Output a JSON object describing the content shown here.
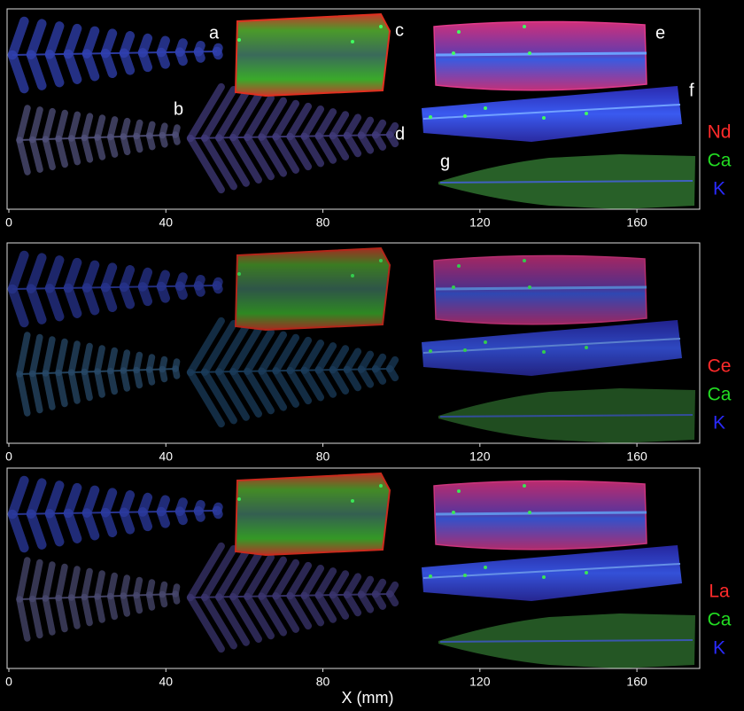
{
  "panels": [
    {
      "sample_labels": [
        "a",
        "b",
        "c",
        "d",
        "e",
        "f",
        "g"
      ],
      "legend": [
        {
          "label": "Nd",
          "color": "#ff2a2a"
        },
        {
          "label": "Ca",
          "color": "#22dd22"
        },
        {
          "label": "K",
          "color": "#2a2aff"
        }
      ]
    },
    {
      "legend": [
        {
          "label": "Ce",
          "color": "#ff2a2a"
        },
        {
          "label": "Ca",
          "color": "#22dd22"
        },
        {
          "label": "K",
          "color": "#2a2aff"
        }
      ]
    },
    {
      "legend": [
        {
          "label": "La",
          "color": "#ff2a2a"
        },
        {
          "label": "Ca",
          "color": "#22dd22"
        },
        {
          "label": "K",
          "color": "#2a2aff"
        }
      ]
    }
  ],
  "x_axis": {
    "label": "X (mm)",
    "xlim": [
      0,
      176
    ],
    "ticks": [
      0,
      40,
      80,
      120,
      160
    ]
  }
}
